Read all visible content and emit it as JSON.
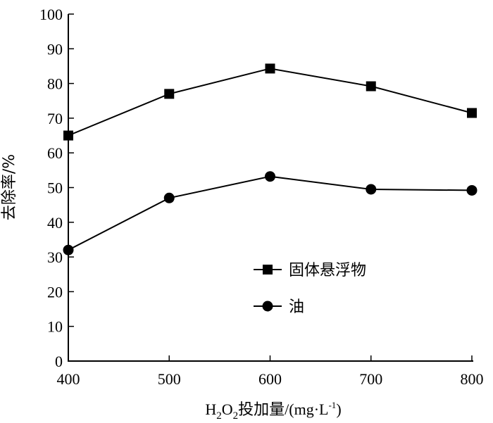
{
  "chart_data": {
    "type": "line",
    "x": [
      400,
      500,
      600,
      700,
      800
    ],
    "series": [
      {
        "name": "固体悬浮物",
        "values": [
          65,
          77,
          84.3,
          79.2,
          71.5
        ],
        "marker": "square"
      },
      {
        "name": "油",
        "values": [
          32,
          47,
          53.2,
          49.5,
          49.2
        ],
        "marker": "circle"
      }
    ],
    "xticks": [
      "400",
      "500",
      "600",
      "700",
      "800"
    ],
    "yticks": [
      "0",
      "10",
      "20",
      "30",
      "40",
      "50",
      "60",
      "70",
      "80",
      "90",
      "100"
    ],
    "xlim": [
      400,
      800
    ],
    "ylim": [
      0,
      100
    ],
    "xlabel": {
      "h": "H",
      "sub1": "2",
      "o": "O",
      "sub2": "2",
      "rest": "投加量/(mg·L",
      "sup": "-1",
      "close": ")"
    },
    "ylabel": "去除率/%",
    "legend_position": "center-right",
    "grid": false,
    "color": "#000000"
  }
}
